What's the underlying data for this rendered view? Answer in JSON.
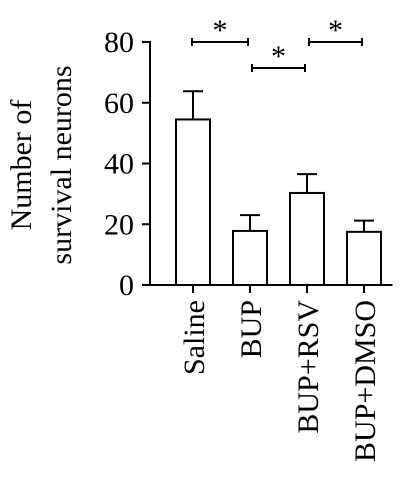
{
  "chart_data": {
    "type": "bar",
    "ylabel_line1": "Number of",
    "ylabel_line2": "survival neurons",
    "categories": [
      "Saline",
      "BUP",
      "BUP+RSV",
      "BUP+DMSO"
    ],
    "values": [
      54.5,
      17.8,
      30.3,
      17.5
    ],
    "errors": [
      9.3,
      5.2,
      6.2,
      3.7
    ],
    "ylim": [
      0,
      80
    ],
    "yticks": [
      0,
      20,
      40,
      60,
      80
    ],
    "significance": [
      {
        "from": 0,
        "to": 1,
        "label": "*",
        "level": 2
      },
      {
        "from": 1,
        "to": 2,
        "label": "*",
        "level": 1
      },
      {
        "from": 2,
        "to": 3,
        "label": "*",
        "level": 2
      }
    ],
    "grid": false,
    "legend": "none"
  }
}
